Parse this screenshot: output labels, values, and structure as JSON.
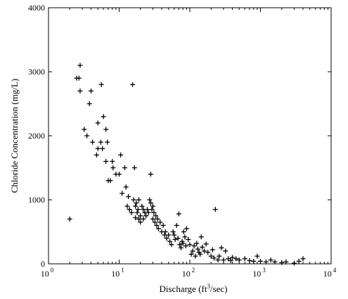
{
  "chart_data": {
    "type": "scatter",
    "title": "",
    "xlabel": "Discharge (ft3/sec)",
    "ylabel": "Chloride Concentration (mg/L)",
    "x_scale": "log",
    "xlim": [
      1,
      10000
    ],
    "ylim": [
      0,
      4000
    ],
    "grid": false,
    "marker": "+",
    "y_ticks": [
      {
        "value": 0,
        "label": "0"
      },
      {
        "value": 1000,
        "label": "1000"
      },
      {
        "value": 2000,
        "label": "2000"
      },
      {
        "value": 3000,
        "label": "3000"
      },
      {
        "value": 4000,
        "label": "4000"
      }
    ],
    "x_ticks": [
      {
        "value": 1,
        "base": "10",
        "exp": "0"
      },
      {
        "value": 10,
        "base": "10",
        "exp": "1"
      },
      {
        "value": 100,
        "base": "10",
        "exp": "2"
      },
      {
        "value": 1000,
        "base": "10",
        "exp": "3"
      },
      {
        "value": 10000,
        "base": "10",
        "exp": "4"
      }
    ],
    "series": [
      {
        "color": "#000000",
        "points": [
          [
            2.0,
            700
          ],
          [
            2.5,
            2900
          ],
          [
            2.7,
            2900
          ],
          [
            2.8,
            3100
          ],
          [
            2.8,
            2700
          ],
          [
            3.2,
            2100
          ],
          [
            3.5,
            2000
          ],
          [
            3.8,
            2500
          ],
          [
            4.0,
            2700
          ],
          [
            4.2,
            1900
          ],
          [
            4.8,
            1700
          ],
          [
            5.0,
            2200
          ],
          [
            5.0,
            1800
          ],
          [
            5.5,
            1900
          ],
          [
            5.6,
            2800
          ],
          [
            5.8,
            1800
          ],
          [
            6.0,
            2300
          ],
          [
            6.5,
            2100
          ],
          [
            6.8,
            1900
          ],
          [
            6.5,
            1600
          ],
          [
            7.0,
            1300
          ],
          [
            7.5,
            1300
          ],
          [
            8.0,
            1600
          ],
          [
            8.2,
            1500
          ],
          [
            9.0,
            1400
          ],
          [
            10.0,
            1400
          ],
          [
            10.5,
            1700
          ],
          [
            11.0,
            1100
          ],
          [
            12.0,
            1500
          ],
          [
            12.5,
            1200
          ],
          [
            13.0,
            900
          ],
          [
            13.5,
            1050
          ],
          [
            14.0,
            850
          ],
          [
            15.0,
            800
          ],
          [
            15.5,
            2800
          ],
          [
            16.0,
            1000
          ],
          [
            16.5,
            1500
          ],
          [
            17.0,
            900
          ],
          [
            17.0,
            720
          ],
          [
            17.5,
            950
          ],
          [
            18.0,
            800
          ],
          [
            18.5,
            850
          ],
          [
            19.0,
            1000
          ],
          [
            19.0,
            700
          ],
          [
            20.0,
            750
          ],
          [
            20.0,
            650
          ],
          [
            21.0,
            900
          ],
          [
            22.0,
            850
          ],
          [
            22.0,
            700
          ],
          [
            23.0,
            800
          ],
          [
            24.0,
            750
          ],
          [
            25.0,
            850
          ],
          [
            26.0,
            800
          ],
          [
            27.0,
            1000
          ],
          [
            28.0,
            950
          ],
          [
            28.0,
            1400
          ],
          [
            29.0,
            850
          ],
          [
            30.0,
            900
          ],
          [
            30.0,
            700
          ],
          [
            31.0,
            800
          ],
          [
            32.0,
            650
          ],
          [
            33.0,
            750
          ],
          [
            34.0,
            600
          ],
          [
            35.0,
            700
          ],
          [
            36.0,
            550
          ],
          [
            38.0,
            650
          ],
          [
            40.0,
            500
          ],
          [
            42.0,
            600
          ],
          [
            44.0,
            450
          ],
          [
            45.0,
            500
          ],
          [
            47.0,
            400
          ],
          [
            50.0,
            450
          ],
          [
            52.0,
            350
          ],
          [
            55.0,
            300
          ],
          [
            58.0,
            500
          ],
          [
            60.0,
            450
          ],
          [
            62.0,
            380
          ],
          [
            65.0,
            600
          ],
          [
            68.0,
            400
          ],
          [
            70.0,
            780
          ],
          [
            72.0,
            300
          ],
          [
            75.0,
            250
          ],
          [
            78.0,
            350
          ],
          [
            80.0,
            320
          ],
          [
            82.0,
            500
          ],
          [
            85.0,
            420
          ],
          [
            88.0,
            280
          ],
          [
            90.0,
            550
          ],
          [
            95.0,
            380
          ],
          [
            100.0,
            300
          ],
          [
            105.0,
            150
          ],
          [
            110.0,
            200
          ],
          [
            115.0,
            280
          ],
          [
            120.0,
            120
          ],
          [
            125.0,
            320
          ],
          [
            130.0,
            230
          ],
          [
            135.0,
            180
          ],
          [
            140.0,
            150
          ],
          [
            145.0,
            420
          ],
          [
            150.0,
            260
          ],
          [
            160.0,
            200
          ],
          [
            170.0,
            310
          ],
          [
            180.0,
            180
          ],
          [
            200.0,
            120
          ],
          [
            210.0,
            220
          ],
          [
            220.0,
            90
          ],
          [
            230.0,
            850
          ],
          [
            250.0,
            60
          ],
          [
            260.0,
            120
          ],
          [
            280.0,
            250
          ],
          [
            300.0,
            60
          ],
          [
            320.0,
            200
          ],
          [
            350.0,
            80
          ],
          [
            380.0,
            50
          ],
          [
            400.0,
            100
          ],
          [
            450.0,
            80
          ],
          [
            500.0,
            60
          ],
          [
            600.0,
            80
          ],
          [
            700.0,
            50
          ],
          [
            800.0,
            40
          ],
          [
            900.0,
            120
          ],
          [
            1000.0,
            40
          ],
          [
            1200.0,
            30
          ],
          [
            1400.0,
            60
          ],
          [
            1600.0,
            30
          ],
          [
            2000.0,
            20
          ],
          [
            2300.0,
            30
          ],
          [
            3000.0,
            10
          ],
          [
            3500.0,
            40
          ],
          [
            4000.0,
            80
          ]
        ]
      }
    ]
  }
}
